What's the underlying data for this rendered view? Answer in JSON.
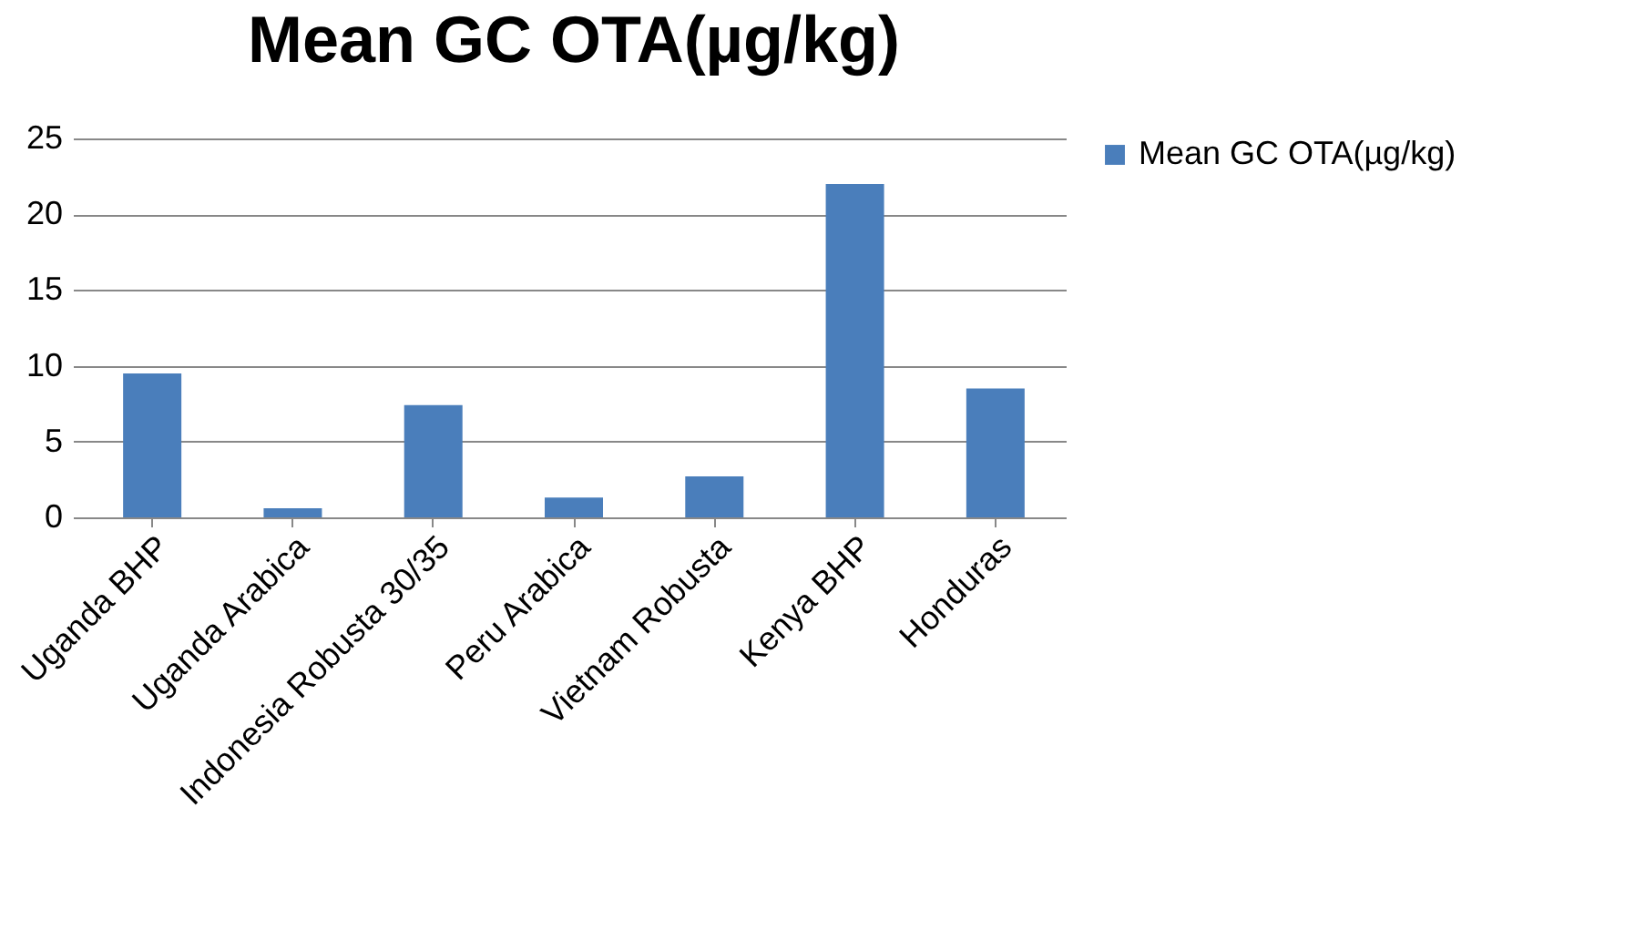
{
  "chart_data": {
    "type": "bar",
    "title": "Mean GC OTA(µg/kg)",
    "categories": [
      "Uganda  BHP",
      "Uganda Arabica",
      "Indonesia Robusta 30/35",
      "Peru Arabica",
      "Vietnam Robusta",
      "Kenya BHP",
      "Honduras"
    ],
    "series": [
      {
        "name": "Mean GC OTA(µg/kg)",
        "color": "#4a7ebb",
        "values": [
          9.5,
          0.6,
          7.4,
          1.3,
          2.7,
          22.0,
          8.5
        ]
      }
    ],
    "ylim": [
      0,
      25
    ],
    "yticks": [
      0,
      5,
      10,
      15,
      20,
      25
    ],
    "grid": "y",
    "legend": "right"
  }
}
